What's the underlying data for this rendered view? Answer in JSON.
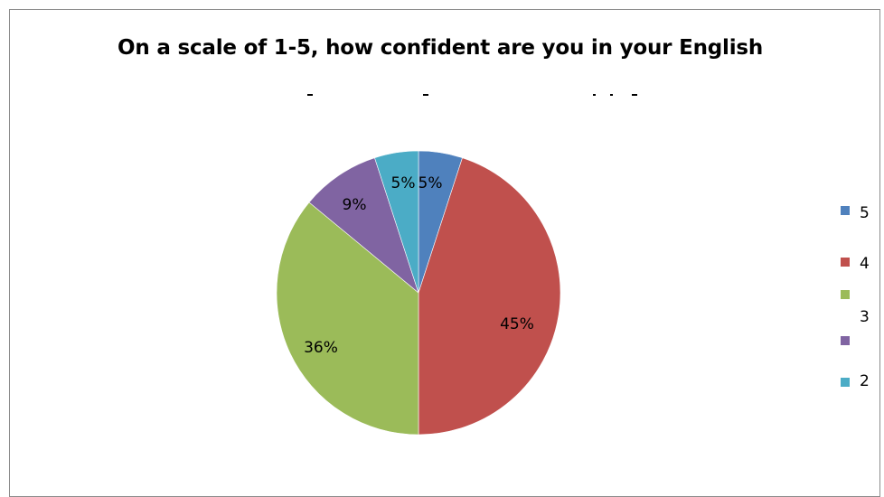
{
  "chart_data": {
    "type": "pie",
    "title": "On a scale of 1-5, how confident are you in your English",
    "slices": [
      {
        "label": "5",
        "value": 5,
        "display": "5%",
        "color": "#4f81bd"
      },
      {
        "label": "4",
        "value": 45,
        "display": "45%",
        "color": "#c0504d"
      },
      {
        "label": "",
        "value": 36,
        "display": "36%",
        "color": "#9bbb59"
      },
      {
        "label": "3",
        "value": 9,
        "display": "9%",
        "color": "#8064a2"
      },
      {
        "label": "2",
        "value": 5,
        "display": "5%",
        "color": "#4bacc6"
      }
    ],
    "legend": {
      "position": "right",
      "entries": [
        "5",
        "4",
        "",
        "3",
        "2"
      ]
    }
  }
}
